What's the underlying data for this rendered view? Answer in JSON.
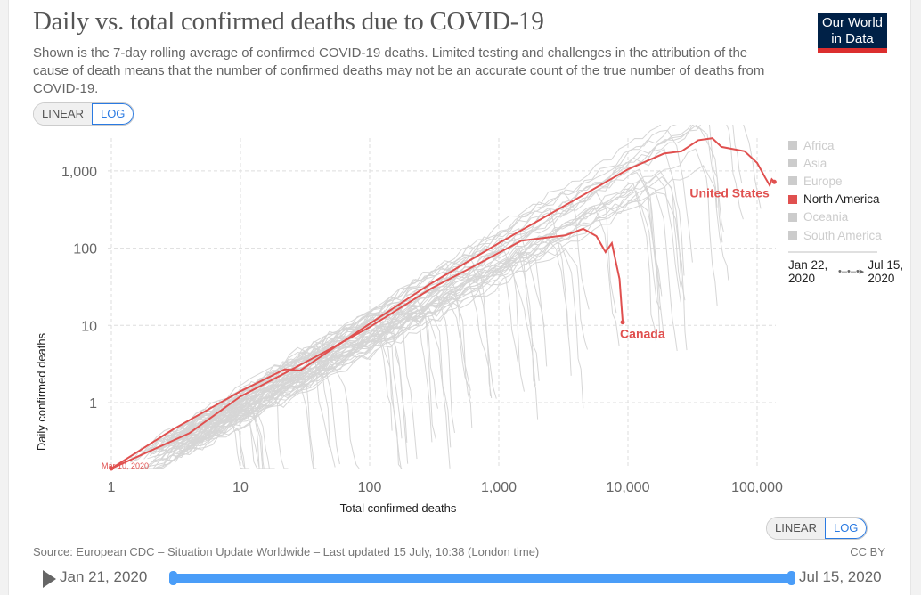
{
  "header": {
    "title": "Daily vs. total confirmed deaths due to COVID-19",
    "subtitle": "Shown is the 7-day rolling average of confirmed COVID-19 deaths. Limited testing and challenges in the attribution of the cause of death means that the number of confirmed deaths may not be an accurate count of the true number of deaths from COVID-19.",
    "logo": "Our World in Data"
  },
  "y_toggle": {
    "linear": "LINEAR",
    "log": "LOG",
    "selected": "LOG"
  },
  "x_toggle": {
    "linear": "LINEAR",
    "log": "LOG",
    "selected": "LOG"
  },
  "legend": {
    "items": [
      {
        "label": "Africa",
        "active": false
      },
      {
        "label": "Asia",
        "active": false
      },
      {
        "label": "Europe",
        "active": false
      },
      {
        "label": "North America",
        "active": true
      },
      {
        "label": "Oceania",
        "active": false
      },
      {
        "label": "South America",
        "active": false
      }
    ],
    "time_start": "Jan 22, 2020",
    "time_end": "Jul 15, 2020"
  },
  "colors": {
    "highlight": "#e0504f",
    "muted": "#d6d6d6",
    "slider": "#4a9df8"
  },
  "chart_data": {
    "type": "line",
    "xlabel": "Total confirmed deaths",
    "ylabel": "Daily confirmed deaths",
    "x_scale": "log",
    "y_scale": "log",
    "xlim": [
      1,
      150000
    ],
    "ylim": [
      0.14,
      3000
    ],
    "x_ticks": [
      {
        "v": 1,
        "label": "1"
      },
      {
        "v": 10,
        "label": "10"
      },
      {
        "v": 100,
        "label": "100"
      },
      {
        "v": 1000,
        "label": "1,000"
      },
      {
        "v": 10000,
        "label": "10,000"
      },
      {
        "v": 100000,
        "label": "100,000"
      }
    ],
    "y_ticks": [
      {
        "v": 1,
        "label": "1"
      },
      {
        "v": 10,
        "label": "10"
      },
      {
        "v": 100,
        "label": "100"
      },
      {
        "v": 1000,
        "label": "1,000"
      }
    ],
    "grid": true,
    "start_annotation": "Mar 10, 2020",
    "series": [
      {
        "name": "United States",
        "points": [
          [
            1,
            0.14
          ],
          [
            3,
            0.45
          ],
          [
            10,
            1.4
          ],
          [
            22,
            2.7
          ],
          [
            29,
            2.6
          ],
          [
            100,
            10.5
          ],
          [
            300,
            35
          ],
          [
            1000,
            116
          ],
          [
            3000,
            330
          ],
          [
            10000,
            1050
          ],
          [
            19000,
            1680
          ],
          [
            26000,
            1800
          ],
          [
            35000,
            2500
          ],
          [
            45000,
            2650
          ],
          [
            53000,
            2050
          ],
          [
            80000,
            1800
          ],
          [
            100000,
            1270
          ],
          [
            116000,
            810
          ],
          [
            125000,
            650
          ],
          [
            130000,
            780
          ],
          [
            136000,
            720
          ]
        ]
      },
      {
        "name": "Canada",
        "points": [
          [
            1,
            0.14
          ],
          [
            4,
            0.4
          ],
          [
            10,
            1.2
          ],
          [
            20,
            2.2
          ],
          [
            50,
            5
          ],
          [
            100,
            9.5
          ],
          [
            300,
            30
          ],
          [
            600,
            55
          ],
          [
            1500,
            125
          ],
          [
            3300,
            147
          ],
          [
            4500,
            178
          ],
          [
            5700,
            143
          ],
          [
            6700,
            89
          ],
          [
            7500,
            116
          ],
          [
            8600,
            40
          ],
          [
            9100,
            11
          ]
        ]
      }
    ]
  },
  "footer": {
    "source": "Source: European CDC – Situation Update Worldwide – Last updated 15 July, 10:38 (London time)",
    "license": "CC BY",
    "timeline_start": "Jan 21, 2020",
    "timeline_end": "Jul 15, 2020"
  }
}
